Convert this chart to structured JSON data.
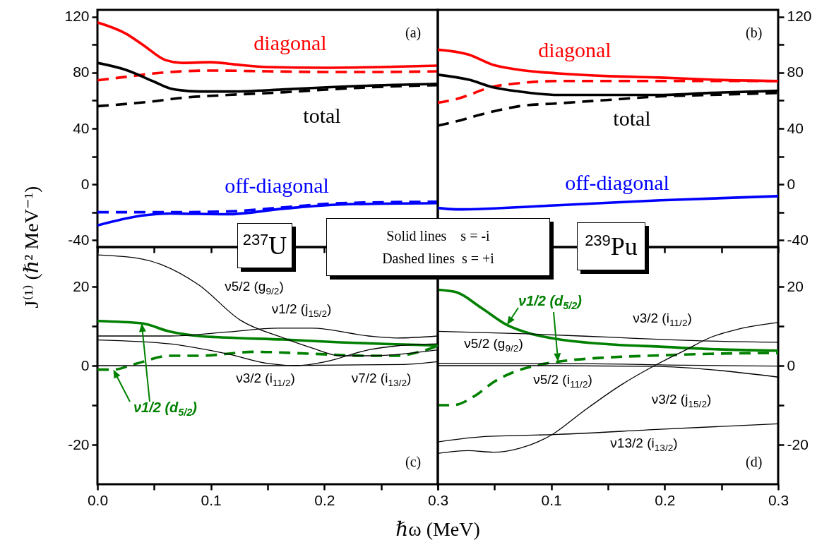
{
  "chart_data": [
    {
      "type": "line",
      "ylabel": "J⁽¹⁾ (ℏ² MeV⁻¹)",
      "xlim": [
        0,
        0.3
      ],
      "ylim": [
        -45,
        125
      ],
      "xticks": [
        {
          "value": 0,
          "label": null
        },
        {
          "value": 0.05,
          "label": null
        },
        {
          "value": 0.1,
          "label": null
        },
        {
          "value": 0.15,
          "label": null
        },
        {
          "value": 0.2,
          "label": null
        },
        {
          "value": 0.25,
          "label": null
        },
        {
          "value": 0.3,
          "label": null
        }
      ],
      "yticks": [
        -40,
        {
          "value": -20,
          "label": null
        },
        0,
        {
          "value": 20,
          "label": null
        },
        40,
        {
          "value": 60,
          "label": null
        },
        80,
        {
          "value": 100,
          "label": null
        },
        120
      ],
      "tick_labels": "y",
      "series": [
        {
          "color": "#ff0000",
          "line_style": "solid",
          "x": [
            0,
            0.025,
            0.04,
            0.06,
            0.075,
            0.1,
            0.12,
            0.15,
            0.2,
            0.25,
            0.3
          ],
          "values": [
            116,
            108,
            100,
            89,
            87,
            87.5,
            86,
            84,
            83.5,
            84,
            85
          ]
        },
        {
          "color": "#ff0000",
          "line_style": "dashed",
          "x": [
            0,
            0.025,
            0.05,
            0.075,
            0.1,
            0.15,
            0.2,
            0.25,
            0.3
          ],
          "values": [
            74.5,
            77,
            79.5,
            81,
            81.5,
            81,
            80.5,
            80.5,
            81
          ]
        },
        {
          "color": "#000000",
          "line_style": "solid",
          "x": [
            0,
            0.025,
            0.05,
            0.065,
            0.09,
            0.115,
            0.165,
            0.215,
            0.3
          ],
          "values": [
            87,
            82,
            73.5,
            68.5,
            66.5,
            66.5,
            68,
            70,
            72
          ]
        },
        {
          "color": "#000000",
          "line_style": "dashed",
          "x": [
            0,
            0.05,
            0.075,
            0.115,
            0.165,
            0.215,
            0.255,
            0.3
          ],
          "values": [
            56,
            59.5,
            62,
            64,
            66,
            68.5,
            70,
            71
          ]
        },
        {
          "color": "#0000ff",
          "line_style": "solid",
          "x": [
            0,
            0.039,
            0.064,
            0.114,
            0.164,
            0.214,
            0.3
          ],
          "values": [
            -29.5,
            -22.5,
            -21,
            -21.5,
            -17.5,
            -14.5,
            -13.5
          ]
        },
        {
          "color": "#0000ff",
          "line_style": "dashed",
          "x": [
            0,
            0.064,
            0.114,
            0.164,
            0.214,
            0.3
          ],
          "values": [
            -20,
            -20,
            -19.5,
            -16.5,
            -13.5,
            -12.5
          ]
        }
      ],
      "annotations": [
        "diagonal",
        "total",
        "off-diagonal",
        "(a)"
      ]
    },
    {
      "type": "line",
      "xlim": [
        0,
        0.3
      ],
      "ylim": [
        -45,
        125
      ],
      "xticks": [
        {
          "value": 0,
          "label": null
        },
        {
          "value": 0.05,
          "label": null
        },
        {
          "value": 0.1,
          "label": null
        },
        {
          "value": 0.15,
          "label": null
        },
        {
          "value": 0.2,
          "label": null
        },
        {
          "value": 0.25,
          "label": null
        },
        {
          "value": 0.3,
          "label": null
        }
      ],
      "yticks": [
        -40,
        {
          "value": -20,
          "label": null
        },
        0,
        {
          "value": 20,
          "label": null
        },
        40,
        {
          "value": 60,
          "label": null
        },
        80,
        {
          "value": 100,
          "label": null
        },
        120
      ],
      "tick_labels": "y",
      "series": [
        {
          "color": "#ff0000",
          "line_style": "solid",
          "x": [
            0,
            0.027,
            0.049,
            0.072,
            0.106,
            0.151,
            0.196,
            0.24,
            0.3
          ],
          "values": [
            96.5,
            93,
            85.5,
            82,
            79.5,
            77.5,
            76.5,
            75,
            74
          ]
        },
        {
          "color": "#ff0000",
          "line_style": "dashed",
          "x": [
            0,
            0.016,
            0.049,
            0.072,
            0.106,
            0.151,
            0.3
          ],
          "values": [
            58.5,
            61,
            70,
            72.5,
            74,
            74,
            74
          ]
        },
        {
          "color": "#000000",
          "line_style": "solid",
          "x": [
            0,
            0.027,
            0.049,
            0.072,
            0.106,
            0.151,
            0.196,
            0.24,
            0.3
          ],
          "values": [
            78.5,
            75,
            69.5,
            66.5,
            64,
            64,
            64,
            65.5,
            67
          ]
        },
        {
          "color": "#000000",
          "line_style": "dashed",
          "x": [
            0,
            0.016,
            0.038,
            0.072,
            0.106,
            0.151,
            0.196,
            0.24,
            0.3
          ],
          "values": [
            42,
            45,
            50,
            56,
            58,
            60.5,
            63,
            64,
            65.5
          ]
        },
        {
          "color": "#0000ff",
          "line_style": "solid",
          "x": [
            0,
            0.016,
            0.106,
            0.196,
            0.3
          ],
          "values": [
            -17,
            -18,
            -15,
            -11.5,
            -8.5
          ]
        }
      ],
      "annotations": [
        "diagonal",
        "total",
        "off-diagonal",
        "(b)"
      ]
    },
    {
      "type": "line",
      "xlabel": "ℏω (MeV)",
      "xlim": [
        0,
        0.3
      ],
      "ylim": [
        -30,
        30
      ],
      "xticks": [
        {
          "value": 0,
          "label": "0.0"
        },
        {
          "value": 0.05,
          "label": null
        },
        0.1,
        {
          "value": 0.15,
          "label": null
        },
        0.2,
        {
          "value": 0.25,
          "label": null
        },
        0.3
      ],
      "yticks": [
        -20,
        {
          "value": -10,
          "label": null
        },
        0,
        {
          "value": 10,
          "label": null
        },
        20
      ],
      "series": [
        {
          "color": "#008000",
          "line_style": "solid",
          "x": [
            0,
            0.039,
            0.064,
            0.089,
            0.114,
            0.164,
            0.214,
            0.264,
            0.3
          ],
          "values": [
            11.3,
            10.7,
            8.6,
            7.5,
            7.1,
            6.6,
            5.9,
            5.4,
            5.1
          ]
        },
        {
          "color": "#008000",
          "line_style": "dashed",
          "x": [
            0,
            0.014,
            0.034,
            0.064,
            0.089,
            0.139,
            0.189,
            0.239,
            0.264,
            0.284,
            0.3
          ],
          "values": [
            -1,
            -1,
            0.5,
            2.5,
            2.5,
            3.5,
            3,
            2.5,
            2.5,
            3.5,
            5
          ]
        },
        {
          "color": "#000000",
          "line_style": "solid",
          "x": [
            0,
            0.039,
            0.089,
            0.126,
            0.164,
            0.189,
            0.214,
            0.239,
            0.3
          ],
          "values": [
            28,
            27,
            20.5,
            11.5,
            7,
            4.5,
            2.5,
            2.5,
            4
          ]
        },
        {
          "color": "#000000",
          "line_style": "solid",
          "x": [
            0,
            0.064,
            0.114,
            0.159,
            0.189,
            0.239,
            0.264,
            0.3
          ],
          "values": [
            7.5,
            7.5,
            8.5,
            9.5,
            9.5,
            7.5,
            7,
            7.5
          ]
        },
        {
          "color": "#000000",
          "line_style": "solid",
          "x": [
            0,
            0.064,
            0.114,
            0.151,
            0.176,
            0.201,
            0.239,
            0.264,
            0.3
          ],
          "values": [
            6.5,
            5.5,
            3,
            0.5,
            0,
            1,
            4,
            5,
            5.5
          ]
        },
        {
          "color": "#000000",
          "line_style": "solid",
          "x": [
            0,
            0.15,
            0.27,
            0.3
          ],
          "values": [
            0,
            0,
            0.3,
            1
          ]
        }
      ],
      "annotations": [
        "ν5/2 (g$_{9/2}$)",
        "ν1/2 (j$_{15/2}$)",
        "ν3/2 (i$_{11/2}$)",
        "ν7/2 (i$_{13/2}$)",
        "ν1/2 (d$_{5/2}$)",
        "(c)",
        "$^{237}$U",
        "Solid lines    s = -i",
        "Dashed lines  s = +i"
      ]
    },
    {
      "type": "line",
      "xlim": [
        0,
        0.3
      ],
      "ylim": [
        -30,
        30
      ],
      "xticks": [
        {
          "value": 0,
          "label": null
        },
        {
          "value": 0.05,
          "label": null
        },
        0.1,
        {
          "value": 0.15,
          "label": null
        },
        0.2,
        {
          "value": 0.25,
          "label": null
        },
        0.3
      ],
      "yticks": [
        -20,
        {
          "value": -10,
          "label": null
        },
        0,
        {
          "value": 10,
          "label": null
        },
        20
      ],
      "series": [
        {
          "color": "#008000",
          "line_style": "solid",
          "x": [
            0,
            0.016,
            0.038,
            0.061,
            0.083,
            0.106,
            0.151,
            0.196,
            0.24,
            0.3
          ],
          "values": [
            19.2,
            18.6,
            14.7,
            10.3,
            8,
            6.7,
            5.4,
            4.8,
            4.2,
            3.8
          ]
        },
        {
          "color": "#008000",
          "line_style": "dashed",
          "x": [
            0,
            0.013,
            0.034,
            0.049,
            0.07,
            0.083,
            0.106,
            0.151,
            0.196,
            0.24,
            0.3
          ],
          "values": [
            -10,
            -10,
            -7.4,
            -4.2,
            -1.3,
            -0.2,
            1,
            2.1,
            2.6,
            3,
            3.2
          ]
        },
        {
          "color": "#000000",
          "line_style": "solid",
          "x": [
            0,
            0.083,
            0.151,
            0.218,
            0.3
          ],
          "values": [
            8.7,
            8,
            7.2,
            6.4,
            5.9
          ]
        },
        {
          "color": "#000000",
          "line_style": "solid",
          "x": [
            0,
            0.128,
            0.218,
            0.3
          ],
          "values": [
            0.6,
            0.5,
            0.1,
            -0.1
          ]
        },
        {
          "color": "#000000",
          "line_style": "solid",
          "x": [
            0,
            0.106,
            0.196,
            0.24,
            0.3
          ],
          "values": [
            0,
            0,
            -0.2,
            -1,
            -2.9
          ]
        },
        {
          "color": "#000000",
          "line_style": "solid",
          "x": [
            0,
            0.027,
            0.049,
            0.072,
            0.101,
            0.128,
            0.162,
            0.191,
            0.218,
            0.24,
            0.263,
            0.3
          ],
          "values": [
            -22.2,
            -21.5,
            -21.9,
            -20.9,
            -17.4,
            -11.6,
            -4.8,
            0,
            3.9,
            7.1,
            9.1,
            10.9
          ]
        },
        {
          "color": "#000000",
          "line_style": "solid",
          "x": [
            0,
            0.038,
            0.106,
            0.196,
            0.3
          ],
          "values": [
            -19.3,
            -18,
            -17.4,
            -16.1,
            -14.7
          ]
        }
      ],
      "annotations": [
        "ν1/2 (d$_{5/2}$)",
        "ν3/2 (i$_{11/2}$)",
        "ν5/2 (g$_{9/2}$)",
        "ν5/2 (i$_{11/2}$)",
        "ν3/2 (j$_{15/2}$)",
        "ν13/2 (i$_{13/2}$)",
        "(d)",
        "$^{239}$Pu"
      ]
    }
  ]
}
